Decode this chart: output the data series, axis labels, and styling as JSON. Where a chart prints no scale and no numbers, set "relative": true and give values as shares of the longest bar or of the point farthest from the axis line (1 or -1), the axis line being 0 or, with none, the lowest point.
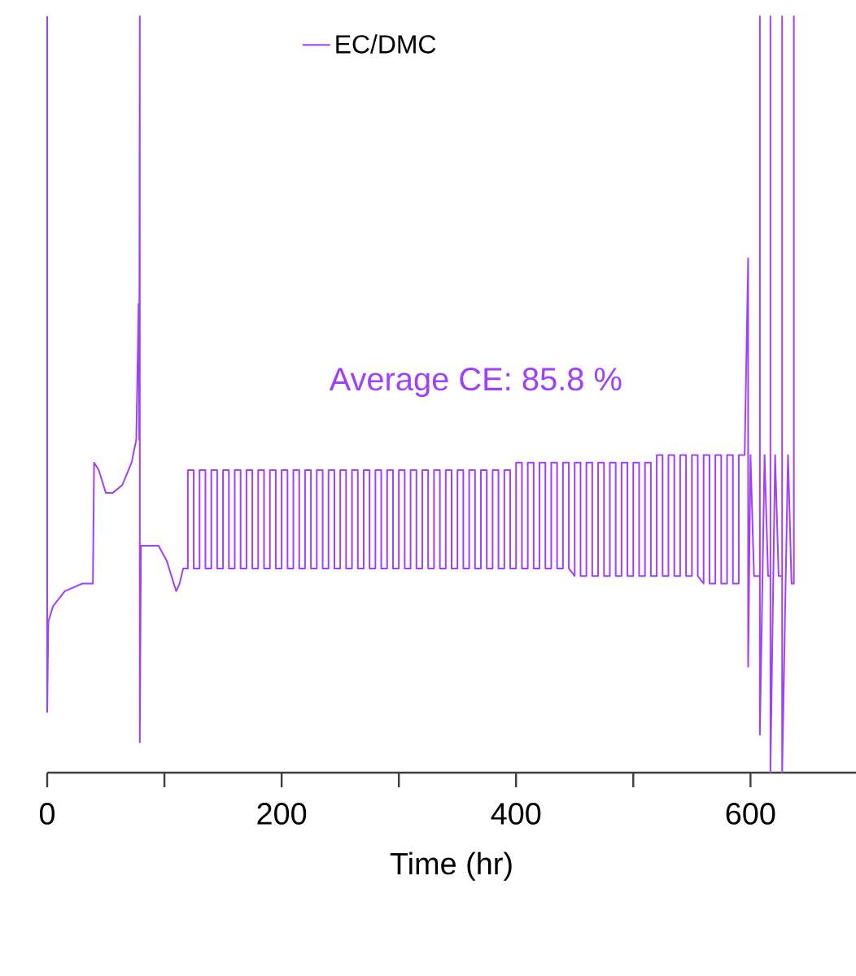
{
  "chart_data": {
    "type": "line",
    "relative": true,
    "xlabel": "Time (hr)",
    "xlim": [
      0,
      690
    ],
    "xticks": [
      0,
      {
        "value": 100,
        "label": null
      },
      200,
      {
        "value": 300,
        "label": null
      },
      400,
      {
        "value": 500,
        "label": null
      },
      600
    ],
    "legend": "top",
    "annotations": [
      "Average CE: 85.8 %"
    ],
    "series": [
      {
        "name": "EC/DMC",
        "color": "#a040ff",
        "x": [
          0,
          0,
          1,
          5,
          15,
          30,
          39,
          40,
          44,
          50,
          56,
          64,
          72,
          76,
          78,
          78.5,
          79,
          79,
          80,
          88,
          95,
          102,
          110,
          113,
          116,
          120,
          120,
          125,
          125,
          130,
          130,
          135,
          135,
          140,
          140,
          145,
          145,
          150,
          150,
          155,
          155,
          160,
          160,
          165,
          165,
          170,
          170,
          175,
          175,
          180,
          180,
          185,
          185,
          190,
          190,
          195,
          195,
          200,
          200,
          205,
          205,
          210,
          210,
          215,
          215,
          220,
          220,
          225,
          225,
          230,
          230,
          235,
          235,
          240,
          240,
          245,
          245,
          250,
          250,
          255,
          255,
          260,
          260,
          265,
          265,
          270,
          270,
          275,
          275,
          280,
          280,
          285,
          285,
          290,
          290,
          295,
          295,
          300,
          300,
          305,
          305,
          310,
          310,
          315,
          315,
          320,
          320,
          325,
          325,
          330,
          330,
          335,
          335,
          340,
          340,
          345,
          345,
          350,
          350,
          355,
          355,
          360,
          360,
          365,
          365,
          370,
          370,
          375,
          375,
          380,
          380,
          385,
          385,
          390,
          390,
          395,
          395,
          400,
          400,
          405,
          405,
          410,
          410,
          415,
          415,
          420,
          420,
          425,
          425,
          430,
          430,
          435,
          435,
          440,
          440,
          445,
          445,
          450,
          450,
          455,
          455,
          460,
          460,
          465,
          465,
          470,
          470,
          475,
          475,
          480,
          480,
          485,
          485,
          490,
          490,
          495,
          495,
          500,
          500,
          505,
          505,
          510,
          510,
          515,
          515,
          520,
          520,
          525,
          525,
          530,
          530,
          535,
          535,
          540,
          540,
          545,
          545,
          550,
          550,
          555,
          555,
          560,
          560,
          565,
          565,
          570,
          570,
          575,
          575,
          580,
          580,
          585,
          585,
          590,
          590,
          595,
          598,
          598,
          600,
          603,
          608,
          608,
          608,
          612,
          615,
          617,
          617,
          617,
          621,
          624,
          627,
          627,
          627,
          632,
          635,
          637,
          637,
          637
        ],
        "values": [
          1.0,
          0.08,
          0.2,
          0.22,
          0.24,
          0.25,
          0.25,
          0.41,
          0.4,
          0.37,
          0.37,
          0.38,
          0.41,
          0.44,
          0.62,
          0.44,
          1.0,
          0.04,
          0.3,
          0.3,
          0.3,
          0.28,
          0.24,
          0.25,
          0.27,
          0.27,
          0.4,
          0.4,
          0.27,
          0.27,
          0.4,
          0.4,
          0.27,
          0.27,
          0.4,
          0.4,
          0.27,
          0.27,
          0.4,
          0.4,
          0.27,
          0.27,
          0.4,
          0.4,
          0.27,
          0.27,
          0.4,
          0.4,
          0.27,
          0.27,
          0.4,
          0.4,
          0.27,
          0.27,
          0.4,
          0.4,
          0.27,
          0.27,
          0.4,
          0.4,
          0.27,
          0.27,
          0.4,
          0.4,
          0.27,
          0.27,
          0.4,
          0.4,
          0.27,
          0.27,
          0.4,
          0.4,
          0.27,
          0.27,
          0.4,
          0.4,
          0.27,
          0.27,
          0.4,
          0.4,
          0.27,
          0.27,
          0.4,
          0.4,
          0.27,
          0.27,
          0.4,
          0.4,
          0.27,
          0.27,
          0.4,
          0.4,
          0.27,
          0.27,
          0.4,
          0.4,
          0.27,
          0.27,
          0.4,
          0.4,
          0.27,
          0.27,
          0.4,
          0.4,
          0.27,
          0.27,
          0.4,
          0.4,
          0.27,
          0.27,
          0.4,
          0.4,
          0.27,
          0.27,
          0.4,
          0.4,
          0.27,
          0.27,
          0.4,
          0.4,
          0.27,
          0.27,
          0.4,
          0.4,
          0.27,
          0.27,
          0.4,
          0.4,
          0.27,
          0.27,
          0.4,
          0.4,
          0.27,
          0.27,
          0.4,
          0.4,
          0.27,
          0.27,
          0.41,
          0.41,
          0.27,
          0.27,
          0.41,
          0.41,
          0.27,
          0.27,
          0.41,
          0.41,
          0.27,
          0.27,
          0.41,
          0.41,
          0.27,
          0.27,
          0.41,
          0.41,
          0.27,
          0.26,
          0.41,
          0.41,
          0.26,
          0.26,
          0.41,
          0.41,
          0.26,
          0.26,
          0.41,
          0.41,
          0.26,
          0.26,
          0.41,
          0.41,
          0.26,
          0.26,
          0.41,
          0.41,
          0.26,
          0.26,
          0.41,
          0.41,
          0.26,
          0.26,
          0.41,
          0.41,
          0.26,
          0.26,
          0.42,
          0.42,
          0.26,
          0.26,
          0.42,
          0.42,
          0.26,
          0.26,
          0.42,
          0.42,
          0.26,
          0.26,
          0.42,
          0.42,
          0.26,
          0.25,
          0.42,
          0.42,
          0.25,
          0.25,
          0.42,
          0.42,
          0.25,
          0.25,
          0.42,
          0.42,
          0.25,
          0.25,
          0.42,
          0.42,
          0.68,
          0.14,
          0.42,
          0.26,
          0.26,
          1.0,
          0.05,
          0.42,
          0.26,
          0.26,
          1.0,
          0.0,
          0.42,
          0.26,
          0.26,
          1.0,
          0.0,
          0.42,
          0.25,
          0.25,
          1.0,
          0.25
        ]
      }
    ]
  }
}
